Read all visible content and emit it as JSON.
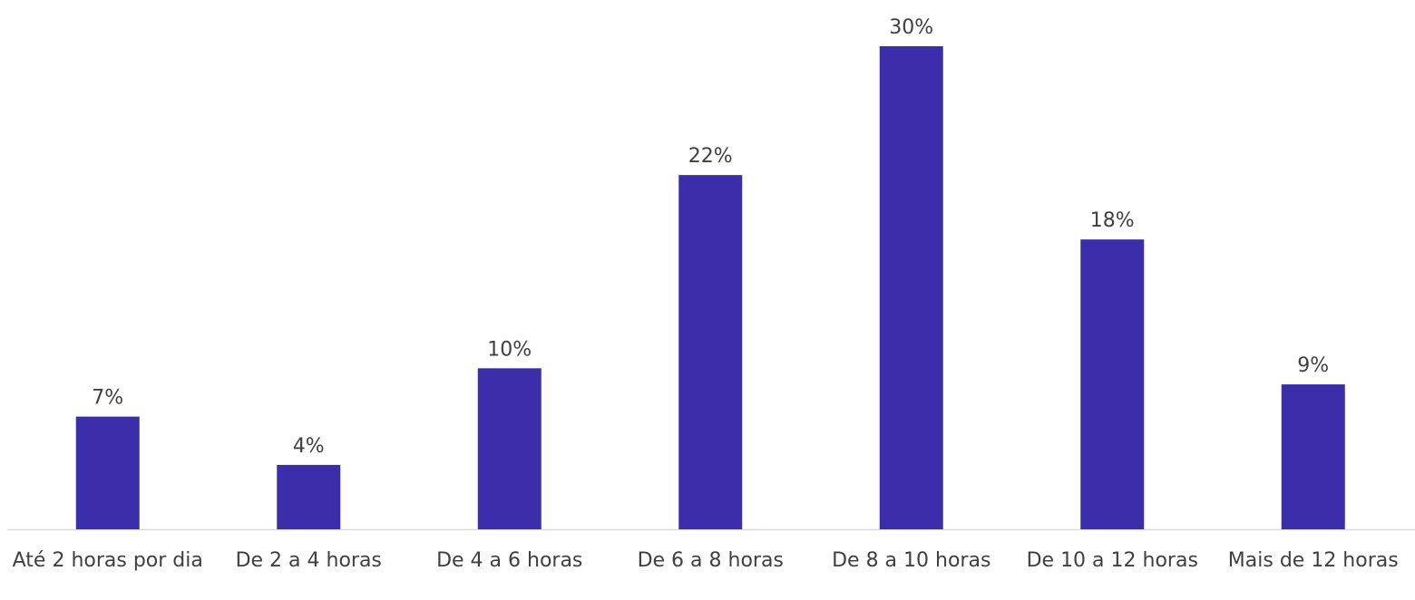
{
  "chart_data": {
    "type": "bar",
    "categories": [
      "Até 2 horas por dia",
      "De 2 a 4 horas",
      "De 4 a 6 horas",
      "De 6 a 8 horas",
      "De 8 a 10 horas",
      "De 10 a 12 horas",
      "Mais de 12 horas"
    ],
    "values": [
      7,
      4,
      10,
      22,
      30,
      18,
      9
    ],
    "value_labels": [
      "7%",
      "4%",
      "10%",
      "22%",
      "30%",
      "18%",
      "9%"
    ],
    "color": "#3c2dab"
  }
}
